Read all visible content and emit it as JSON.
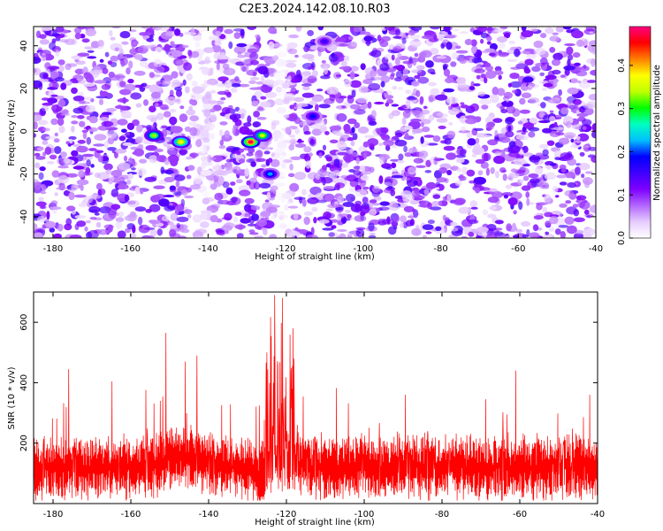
{
  "title": "C2E3.2024.142.08.10.R03",
  "chart_data": [
    {
      "type": "heatmap",
      "xlabel": "Height of straight line (km)",
      "ylabel": "Frequency (Hz)",
      "xlim": [
        -185,
        -40
      ],
      "ylim": [
        -50,
        49
      ],
      "xticks": [
        -180,
        -160,
        -140,
        -120,
        -100,
        -80,
        -60,
        -40
      ],
      "yticks": [
        -40,
        -20,
        0,
        20,
        40
      ],
      "colorbar": {
        "label": "Normalized spectral amplitude",
        "range": [
          0,
          0.49
        ],
        "ticks": [
          0.0,
          0.1,
          0.2,
          0.3,
          0.4
        ],
        "tick_labels": [
          "0.0",
          "0.1",
          "0.2",
          "0.3",
          "0.4"
        ],
        "colormap": [
          "#ffffff",
          "#e6ccff",
          "#b266ff",
          "#7f00ff",
          "#3f00ff",
          "#0000ff",
          "#00bfff",
          "#00ffbf",
          "#00ff00",
          "#bfff00",
          "#ffff00",
          "#ff7f00",
          "#ff0000",
          "#ff0080"
        ]
      },
      "hotspots": [
        {
          "x": -154,
          "y": -2,
          "value": 0.33
        },
        {
          "x": -147,
          "y": -5,
          "value": 0.38
        },
        {
          "x": -129,
          "y": -5,
          "value": 0.47
        },
        {
          "x": -126,
          "y": -2,
          "value": 0.35
        },
        {
          "x": -124,
          "y": -20,
          "value": 0.22
        },
        {
          "x": -113,
          "y": 7,
          "value": 0.18
        },
        {
          "x": -110,
          "y": 42,
          "value": 0.15
        }
      ],
      "background_level": 0.08
    },
    {
      "type": "line",
      "xlabel": "Height of straight line (km)",
      "ylabel": "SNR (10 * v/v)",
      "xlim": [
        -185,
        -40
      ],
      "ylim": [
        0,
        700
      ],
      "xticks": [
        -180,
        -160,
        -140,
        -120,
        -100,
        -80,
        -60,
        -40
      ],
      "yticks": [
        200,
        400,
        600
      ],
      "color": "#ff0000",
      "baseline_mean": 120,
      "peaks": [
        {
          "x": -176,
          "y": 445
        },
        {
          "x": -151,
          "y": 565
        },
        {
          "x": -146,
          "y": 470
        },
        {
          "x": -143,
          "y": 490
        },
        {
          "x": -125,
          "y": 500
        },
        {
          "x": -123,
          "y": 690
        },
        {
          "x": -121,
          "y": 680
        },
        {
          "x": -118,
          "y": 480
        },
        {
          "x": -61,
          "y": 440
        },
        {
          "x": -42,
          "y": 360
        }
      ]
    }
  ]
}
